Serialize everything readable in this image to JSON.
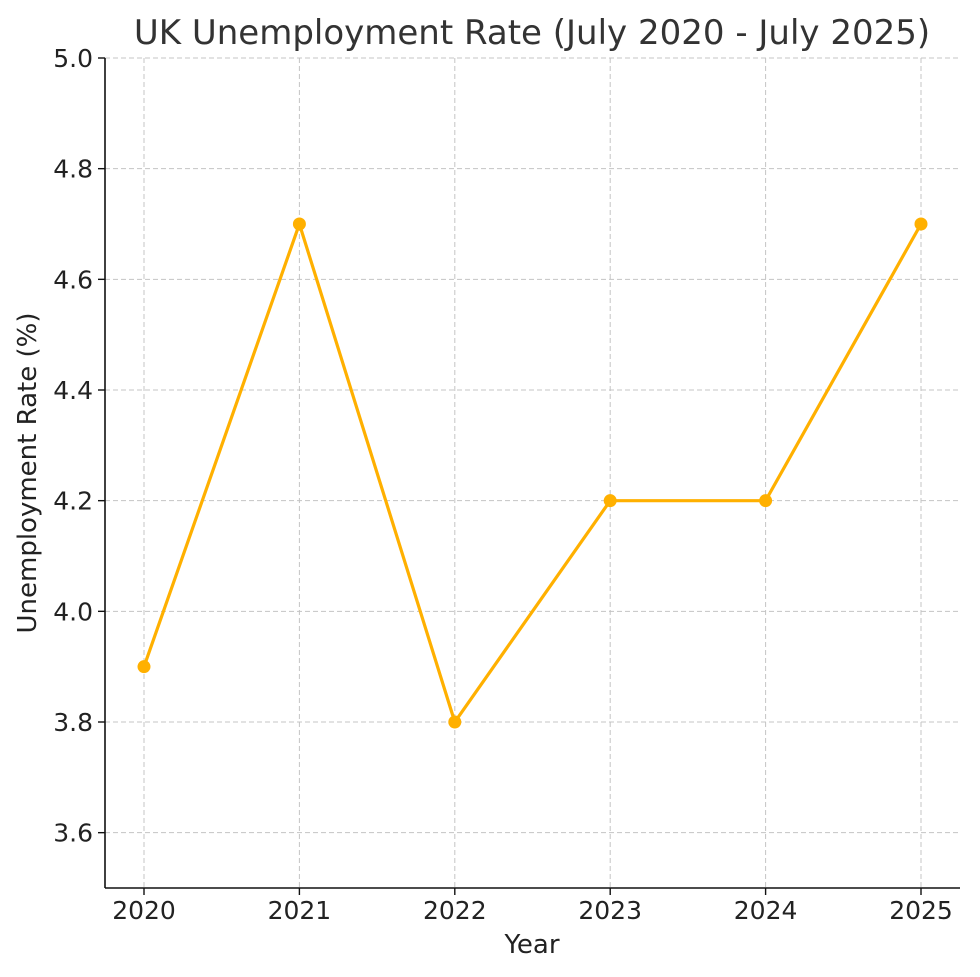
{
  "chart_data": {
    "type": "line",
    "title": "UK Unemployment Rate (July 2020 - July 2025)",
    "xlabel": "Year",
    "ylabel": "Unemployment Rate (%)",
    "x": [
      "2020",
      "2021",
      "2022",
      "2023",
      "2024",
      "2025"
    ],
    "series": [
      {
        "values": [
          3.9,
          4.7,
          3.8,
          4.2,
          4.2,
          4.7
        ],
        "color": "#FFB000",
        "marker": "circle"
      }
    ],
    "ylim": [
      3.5,
      5.0
    ],
    "yticks": [
      "3.6",
      "3.8",
      "4.0",
      "4.2",
      "4.4",
      "4.6",
      "4.8",
      "5.0"
    ],
    "grid": true,
    "legend": "none"
  }
}
